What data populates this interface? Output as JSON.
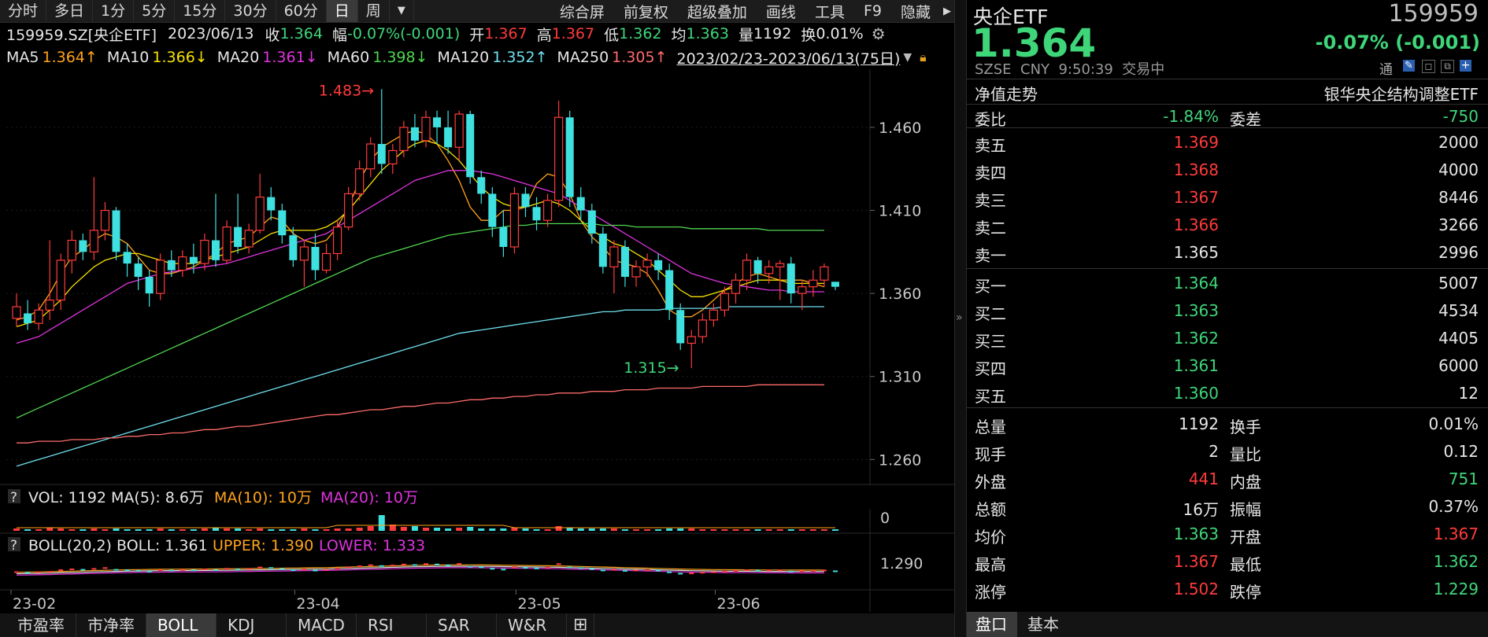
{
  "toolbar": {
    "periods": [
      "分时",
      "多日",
      "1分",
      "5分",
      "15分",
      "30分",
      "60分",
      "日",
      "周"
    ],
    "active_period": "日",
    "dropdown_icon": "dropdown-arrow-icon",
    "tools": [
      "综合屏",
      "前复权",
      "超级叠加",
      "画线",
      "工具",
      "F9",
      "隐藏"
    ]
  },
  "quote_line": {
    "code": "159959.SZ[央企ETF]",
    "date": "2023/06/13",
    "close_label": "收",
    "close": "1.364",
    "chg_label": "幅",
    "chg": "-0.07%(-0.001)",
    "open_label": "开",
    "open": "1.367",
    "high_label": "高",
    "high": "1.367",
    "low_label": "低",
    "low": "1.362",
    "avg_label": "均",
    "avg": "1.363",
    "vol_label": "量",
    "vol": "1192",
    "turn_label": "换",
    "turn": "0.01%"
  },
  "ma_line": {
    "items": [
      {
        "label": "MA5",
        "value": "1.364↑",
        "color": "#ffa31a"
      },
      {
        "label": "MA10",
        "value": "1.366↓",
        "color": "#f5e100"
      },
      {
        "label": "MA20",
        "value": "1.361↓",
        "color": "#e033e0"
      },
      {
        "label": "MA60",
        "value": "1.398↓",
        "color": "#4fd64f"
      },
      {
        "label": "MA120",
        "value": "1.352↑",
        "color": "#6fe0ee"
      },
      {
        "label": "MA250",
        "value": "1.305↑",
        "color": "#ff6b6b"
      }
    ],
    "range": "2023/02/23-2023/06/13(75日)"
  },
  "chart_data": {
    "type": "candlestick",
    "ylim": [
      1.245,
      1.495
    ],
    "y_ticks": [
      "1.460",
      "1.410",
      "1.360",
      "1.310",
      "1.260"
    ],
    "x_ticks": [
      "23-02",
      "23-04",
      "23-05",
      "23-06"
    ],
    "max_label": "1.483",
    "min_label": "1.315",
    "candles": [
      [
        1.345,
        1.352,
        1.36,
        1.34
      ],
      [
        1.348,
        1.342,
        1.356,
        1.338
      ],
      [
        1.342,
        1.35,
        1.354,
        1.338
      ],
      [
        1.35,
        1.356,
        1.392,
        1.344
      ],
      [
        1.356,
        1.38,
        1.384,
        1.35
      ],
      [
        1.38,
        1.392,
        1.398,
        1.372
      ],
      [
        1.392,
        1.385,
        1.396,
        1.38
      ],
      [
        1.385,
        1.398,
        1.43,
        1.38
      ],
      [
        1.398,
        1.41,
        1.415,
        1.392
      ],
      [
        1.41,
        1.385,
        1.412,
        1.38
      ],
      [
        1.385,
        1.378,
        1.39,
        1.37
      ],
      [
        1.378,
        1.37,
        1.382,
        1.362
      ],
      [
        1.37,
        1.36,
        1.374,
        1.352
      ],
      [
        1.36,
        1.38,
        1.384,
        1.356
      ],
      [
        1.38,
        1.374,
        1.386,
        1.37
      ],
      [
        1.374,
        1.382,
        1.386,
        1.37
      ],
      [
        1.382,
        1.378,
        1.39,
        1.372
      ],
      [
        1.378,
        1.392,
        1.396,
        1.374
      ],
      [
        1.392,
        1.38,
        1.42,
        1.376
      ],
      [
        1.38,
        1.4,
        1.404,
        1.378
      ],
      [
        1.4,
        1.388,
        1.42,
        1.384
      ],
      [
        1.388,
        1.398,
        1.402,
        1.384
      ],
      [
        1.398,
        1.418,
        1.432,
        1.396
      ],
      [
        1.418,
        1.41,
        1.424,
        1.404
      ],
      [
        1.41,
        1.395,
        1.414,
        1.39
      ],
      [
        1.395,
        1.38,
        1.4,
        1.376
      ],
      [
        1.38,
        1.388,
        1.392,
        1.364
      ],
      [
        1.388,
        1.374,
        1.396,
        1.368
      ],
      [
        1.374,
        1.384,
        1.39,
        1.372
      ],
      [
        1.384,
        1.4,
        1.404,
        1.38
      ],
      [
        1.4,
        1.42,
        1.424,
        1.398
      ],
      [
        1.42,
        1.435,
        1.44,
        1.416
      ],
      [
        1.435,
        1.45,
        1.454,
        1.43
      ],
      [
        1.45,
        1.438,
        1.483,
        1.432
      ],
      [
        1.438,
        1.446,
        1.45,
        1.432
      ],
      [
        1.446,
        1.46,
        1.464,
        1.442
      ],
      [
        1.46,
        1.452,
        1.468,
        1.448
      ],
      [
        1.452,
        1.466,
        1.47,
        1.448
      ],
      [
        1.466,
        1.46,
        1.47,
        1.45
      ],
      [
        1.46,
        1.448,
        1.47,
        1.444
      ],
      [
        1.448,
        1.468,
        1.47,
        1.44
      ],
      [
        1.468,
        1.43,
        1.47,
        1.426
      ],
      [
        1.43,
        1.42,
        1.434,
        1.414
      ],
      [
        1.42,
        1.4,
        1.424,
        1.394
      ],
      [
        1.4,
        1.388,
        1.41,
        1.382
      ],
      [
        1.388,
        1.42,
        1.424,
        1.384
      ],
      [
        1.42,
        1.412,
        1.424,
        1.406
      ],
      [
        1.412,
        1.404,
        1.418,
        1.398
      ],
      [
        1.404,
        1.416,
        1.42,
        1.4
      ],
      [
        1.416,
        1.466,
        1.476,
        1.412
      ],
      [
        1.466,
        1.418,
        1.47,
        1.412
      ],
      [
        1.418,
        1.41,
        1.424,
        1.404
      ],
      [
        1.41,
        1.396,
        1.414,
        1.39
      ],
      [
        1.396,
        1.376,
        1.4,
        1.372
      ],
      [
        1.376,
        1.388,
        1.392,
        1.36
      ],
      [
        1.388,
        1.37,
        1.392,
        1.364
      ],
      [
        1.37,
        1.376,
        1.38,
        1.364
      ],
      [
        1.376,
        1.38,
        1.384,
        1.37
      ],
      [
        1.38,
        1.374,
        1.384,
        1.368
      ],
      [
        1.374,
        1.35,
        1.378,
        1.344
      ],
      [
        1.35,
        1.33,
        1.354,
        1.326
      ],
      [
        1.33,
        1.334,
        1.338,
        1.315
      ],
      [
        1.334,
        1.344,
        1.348,
        1.33
      ],
      [
        1.344,
        1.35,
        1.354,
        1.34
      ],
      [
        1.35,
        1.36,
        1.364,
        1.346
      ],
      [
        1.36,
        1.368,
        1.372,
        1.354
      ],
      [
        1.368,
        1.38,
        1.384,
        1.362
      ],
      [
        1.38,
        1.372,
        1.382,
        1.366
      ],
      [
        1.372,
        1.376,
        1.38,
        1.366
      ],
      [
        1.376,
        1.378,
        1.38,
        1.356
      ],
      [
        1.378,
        1.36,
        1.382,
        1.354
      ],
      [
        1.36,
        1.364,
        1.368,
        1.35
      ],
      [
        1.364,
        1.368,
        1.374,
        1.358
      ],
      [
        1.368,
        1.376,
        1.378,
        1.364
      ],
      [
        1.367,
        1.364,
        1.367,
        1.362
      ]
    ],
    "ma_series": [
      {
        "name": "MA5",
        "color": "#ffa31a",
        "start": 1.34,
        "values": [
          1.344,
          1.346,
          1.35,
          1.36,
          1.372,
          1.382,
          1.386,
          1.392,
          1.396,
          1.394,
          1.39,
          1.382,
          1.374,
          1.372,
          1.372,
          1.374,
          1.376,
          1.38,
          1.384,
          1.39,
          1.392,
          1.394,
          1.4,
          1.406,
          1.404,
          1.396,
          1.392,
          1.39,
          1.392,
          1.4,
          1.412,
          1.428,
          1.44,
          1.448,
          1.452,
          1.456,
          1.458,
          1.456,
          1.45,
          1.44,
          1.428,
          1.412,
          1.404,
          1.404,
          1.41,
          1.41,
          1.412,
          1.426,
          1.432,
          1.43,
          1.42,
          1.404,
          1.394,
          1.388,
          1.38,
          1.378,
          1.376,
          1.372,
          1.362,
          1.35,
          1.346,
          1.346,
          1.35,
          1.356,
          1.362,
          1.366,
          1.37,
          1.372,
          1.37,
          1.368,
          1.368,
          1.368,
          1.366,
          1.364
        ]
      },
      {
        "name": "MA10",
        "color": "#f5e100",
        "values": [
          1.34,
          1.342,
          1.344,
          1.35,
          1.356,
          1.364,
          1.37,
          1.376,
          1.38,
          1.382,
          1.384,
          1.384,
          1.382,
          1.38,
          1.378,
          1.378,
          1.378,
          1.38,
          1.382,
          1.384,
          1.386,
          1.388,
          1.392,
          1.396,
          1.398,
          1.398,
          1.398,
          1.398,
          1.4,
          1.404,
          1.41,
          1.418,
          1.426,
          1.434,
          1.44,
          1.446,
          1.45,
          1.452,
          1.45,
          1.446,
          1.44,
          1.432,
          1.424,
          1.418,
          1.414,
          1.412,
          1.412,
          1.414,
          1.416,
          1.414,
          1.41,
          1.404,
          1.398,
          1.394,
          1.39,
          1.388,
          1.384,
          1.38,
          1.374,
          1.368,
          1.362,
          1.358,
          1.358,
          1.36,
          1.362,
          1.364,
          1.366,
          1.368,
          1.368,
          1.368,
          1.366,
          1.366,
          1.366,
          1.366
        ]
      },
      {
        "name": "MA20",
        "color": "#e033e0",
        "values": [
          1.33,
          1.332,
          1.334,
          1.338,
          1.342,
          1.346,
          1.35,
          1.354,
          1.358,
          1.362,
          1.366,
          1.368,
          1.37,
          1.372,
          1.373,
          1.374,
          1.375,
          1.376,
          1.377,
          1.378,
          1.38,
          1.382,
          1.384,
          1.386,
          1.388,
          1.39,
          1.392,
          1.394,
          1.396,
          1.4,
          1.404,
          1.408,
          1.412,
          1.416,
          1.42,
          1.424,
          1.428,
          1.43,
          1.432,
          1.434,
          1.434,
          1.434,
          1.433,
          1.432,
          1.43,
          1.428,
          1.426,
          1.424,
          1.422,
          1.42,
          1.416,
          1.412,
          1.408,
          1.404,
          1.4,
          1.396,
          1.392,
          1.388,
          1.384,
          1.38,
          1.376,
          1.372,
          1.37,
          1.368,
          1.366,
          1.365,
          1.364,
          1.363,
          1.362,
          1.362,
          1.361,
          1.361,
          1.361,
          1.361
        ]
      },
      {
        "name": "MA60",
        "color": "#4fd64f",
        "values": [
          1.285,
          1.288,
          1.291,
          1.294,
          1.297,
          1.3,
          1.303,
          1.306,
          1.309,
          1.312,
          1.315,
          1.318,
          1.321,
          1.324,
          1.327,
          1.33,
          1.333,
          1.336,
          1.339,
          1.342,
          1.345,
          1.348,
          1.351,
          1.354,
          1.357,
          1.36,
          1.363,
          1.366,
          1.369,
          1.372,
          1.375,
          1.378,
          1.381,
          1.383,
          1.385,
          1.387,
          1.389,
          1.391,
          1.393,
          1.395,
          1.396,
          1.397,
          1.398,
          1.399,
          1.4,
          1.401,
          1.401,
          1.402,
          1.402,
          1.402,
          1.402,
          1.402,
          1.402,
          1.401,
          1.401,
          1.401,
          1.4,
          1.4,
          1.4,
          1.4,
          1.4,
          1.399,
          1.399,
          1.399,
          1.399,
          1.399,
          1.399,
          1.399,
          1.398,
          1.398,
          1.398,
          1.398,
          1.398,
          1.398
        ]
      },
      {
        "name": "MA120",
        "color": "#6fe0ee",
        "values": [
          1.256,
          1.258,
          1.26,
          1.262,
          1.264,
          1.266,
          1.268,
          1.27,
          1.272,
          1.274,
          1.276,
          1.278,
          1.28,
          1.282,
          1.284,
          1.286,
          1.288,
          1.29,
          1.292,
          1.294,
          1.296,
          1.298,
          1.3,
          1.302,
          1.304,
          1.306,
          1.308,
          1.31,
          1.312,
          1.314,
          1.316,
          1.318,
          1.32,
          1.322,
          1.324,
          1.326,
          1.328,
          1.33,
          1.332,
          1.334,
          1.336,
          1.337,
          1.338,
          1.339,
          1.34,
          1.341,
          1.342,
          1.343,
          1.344,
          1.345,
          1.346,
          1.347,
          1.348,
          1.349,
          1.349,
          1.35,
          1.35,
          1.35,
          1.35,
          1.351,
          1.351,
          1.351,
          1.351,
          1.351,
          1.352,
          1.352,
          1.352,
          1.352,
          1.352,
          1.352,
          1.352,
          1.352,
          1.352,
          1.352
        ]
      },
      {
        "name": "MA250",
        "color": "#ff6b6b",
        "values": [
          1.27,
          1.27,
          1.271,
          1.271,
          1.271,
          1.272,
          1.272,
          1.272,
          1.273,
          1.273,
          1.274,
          1.274,
          1.275,
          1.275,
          1.276,
          1.276,
          1.277,
          1.278,
          1.278,
          1.279,
          1.28,
          1.28,
          1.281,
          1.282,
          1.283,
          1.284,
          1.285,
          1.286,
          1.287,
          1.287,
          1.288,
          1.289,
          1.29,
          1.29,
          1.291,
          1.292,
          1.292,
          1.293,
          1.294,
          1.294,
          1.295,
          1.296,
          1.296,
          1.297,
          1.297,
          1.298,
          1.298,
          1.299,
          1.299,
          1.3,
          1.3,
          1.3,
          1.301,
          1.301,
          1.301,
          1.302,
          1.302,
          1.302,
          1.303,
          1.303,
          1.303,
          1.303,
          1.304,
          1.304,
          1.304,
          1.304,
          1.304,
          1.305,
          1.305,
          1.305,
          1.305,
          1.305,
          1.305,
          1.305
        ]
      }
    ]
  },
  "vol_panel": {
    "help": "?",
    "label": "VOL: 1192",
    "ma5": "MA(5): 8.6万",
    "ma10": "MA(10): 10万",
    "ma20": "MA(20): 10万",
    "y_tick": "0"
  },
  "boll_panel": {
    "help": "?",
    "label": "BOLL(20,2)",
    "boll": "BOLL: 1.361",
    "upper": "UPPER: 1.390",
    "lower": "LOWER: 1.333",
    "y_tick": "1.290"
  },
  "bottom_tabs": [
    "市盈率",
    "市净率",
    "BOLL",
    "KDJ",
    "MACD",
    "RSI",
    "SAR",
    "W&R"
  ],
  "bottom_active": "BOLL",
  "add_icon": "plus-icon",
  "right": {
    "name": "央企ETF",
    "code": "159959",
    "price": "1.364",
    "change": "-0.07% (-0.001)",
    "meta": "SZSE  CNY  9:50:39  交易中",
    "tool_label": "通",
    "nav_label": "净值走势",
    "fund_name": "银华央企结构调整ETF",
    "weibi_label": "委比",
    "weibi": "-1.84%",
    "weicha_label": "委差",
    "weicha": "-750",
    "asks": [
      {
        "label": "卖五",
        "price": "1.369",
        "vol": "2000"
      },
      {
        "label": "卖四",
        "price": "1.368",
        "vol": "4000"
      },
      {
        "label": "卖三",
        "price": "1.367",
        "vol": "8446"
      },
      {
        "label": "卖二",
        "price": "1.366",
        "vol": "3266"
      },
      {
        "label": "卖一",
        "price": "1.365",
        "vol": "2996"
      }
    ],
    "bids": [
      {
        "label": "买一",
        "price": "1.364",
        "vol": "5007"
      },
      {
        "label": "买二",
        "price": "1.363",
        "vol": "4534"
      },
      {
        "label": "买三",
        "price": "1.362",
        "vol": "4405"
      },
      {
        "label": "买四",
        "price": "1.361",
        "vol": "6000"
      },
      {
        "label": "买五",
        "price": "1.360",
        "vol": "12"
      }
    ],
    "stats": [
      {
        "l1": "总量",
        "v1": "1192",
        "c1": "white",
        "l2": "换手",
        "v2": "0.01%",
        "c2": "white"
      },
      {
        "l1": "现手",
        "v1": "2",
        "c1": "white",
        "l2": "量比",
        "v2": "0.12",
        "c2": "white"
      },
      {
        "l1": "外盘",
        "v1": "441",
        "c1": "red",
        "l2": "内盘",
        "v2": "751",
        "c2": "green"
      },
      {
        "l1": "总额",
        "v1": "16万",
        "c1": "white",
        "l2": "振幅",
        "v2": "0.37%",
        "c2": "white"
      },
      {
        "l1": "均价",
        "v1": "1.363",
        "c1": "green",
        "l2": "开盘",
        "v2": "1.367",
        "c2": "red"
      },
      {
        "l1": "最高",
        "v1": "1.367",
        "c1": "red",
        "l2": "最低",
        "v2": "1.362",
        "c2": "green"
      },
      {
        "l1": "涨停",
        "v1": "1.502",
        "c1": "red",
        "l2": "跌停",
        "v2": "1.229",
        "c2": "green"
      }
    ],
    "tabs": [
      "盘口",
      "基本"
    ],
    "active_tab": "盘口"
  }
}
